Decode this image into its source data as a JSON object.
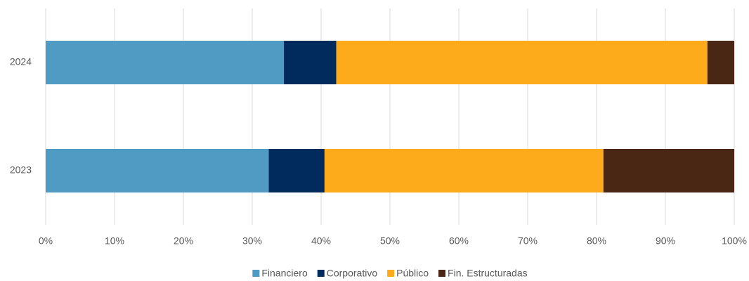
{
  "chart_data": {
    "type": "bar",
    "orientation": "horizontal",
    "stacked": true,
    "categories": [
      "2024",
      "2023"
    ],
    "series": [
      {
        "name": "Financiero",
        "color": "#4f9bc4",
        "values": [
          34.6,
          32.4
        ]
      },
      {
        "name": "Corporativo",
        "color": "#002b5c",
        "values": [
          7.6,
          8.1
        ]
      },
      {
        "name": "Público",
        "color": "#fdab1b",
        "values": [
          53.9,
          40.5
        ]
      },
      {
        "name": "Fin. Estructuradas",
        "color": "#4a2614",
        "values": [
          3.9,
          19.0
        ]
      }
    ],
    "xlim": [
      0,
      100
    ],
    "xticks": [
      {
        "value": 0,
        "label": "0%"
      },
      {
        "value": 10,
        "label": "10%"
      },
      {
        "value": 20,
        "label": "20%"
      },
      {
        "value": 30,
        "label": "30%"
      },
      {
        "value": 40,
        "label": "40%"
      },
      {
        "value": 50,
        "label": "50%"
      },
      {
        "value": 60,
        "label": "60%"
      },
      {
        "value": 70,
        "label": "70%"
      },
      {
        "value": 80,
        "label": "80%"
      },
      {
        "value": 90,
        "label": "90%"
      },
      {
        "value": 100,
        "label": "100%"
      }
    ],
    "grid": true,
    "legend": "bottom"
  }
}
